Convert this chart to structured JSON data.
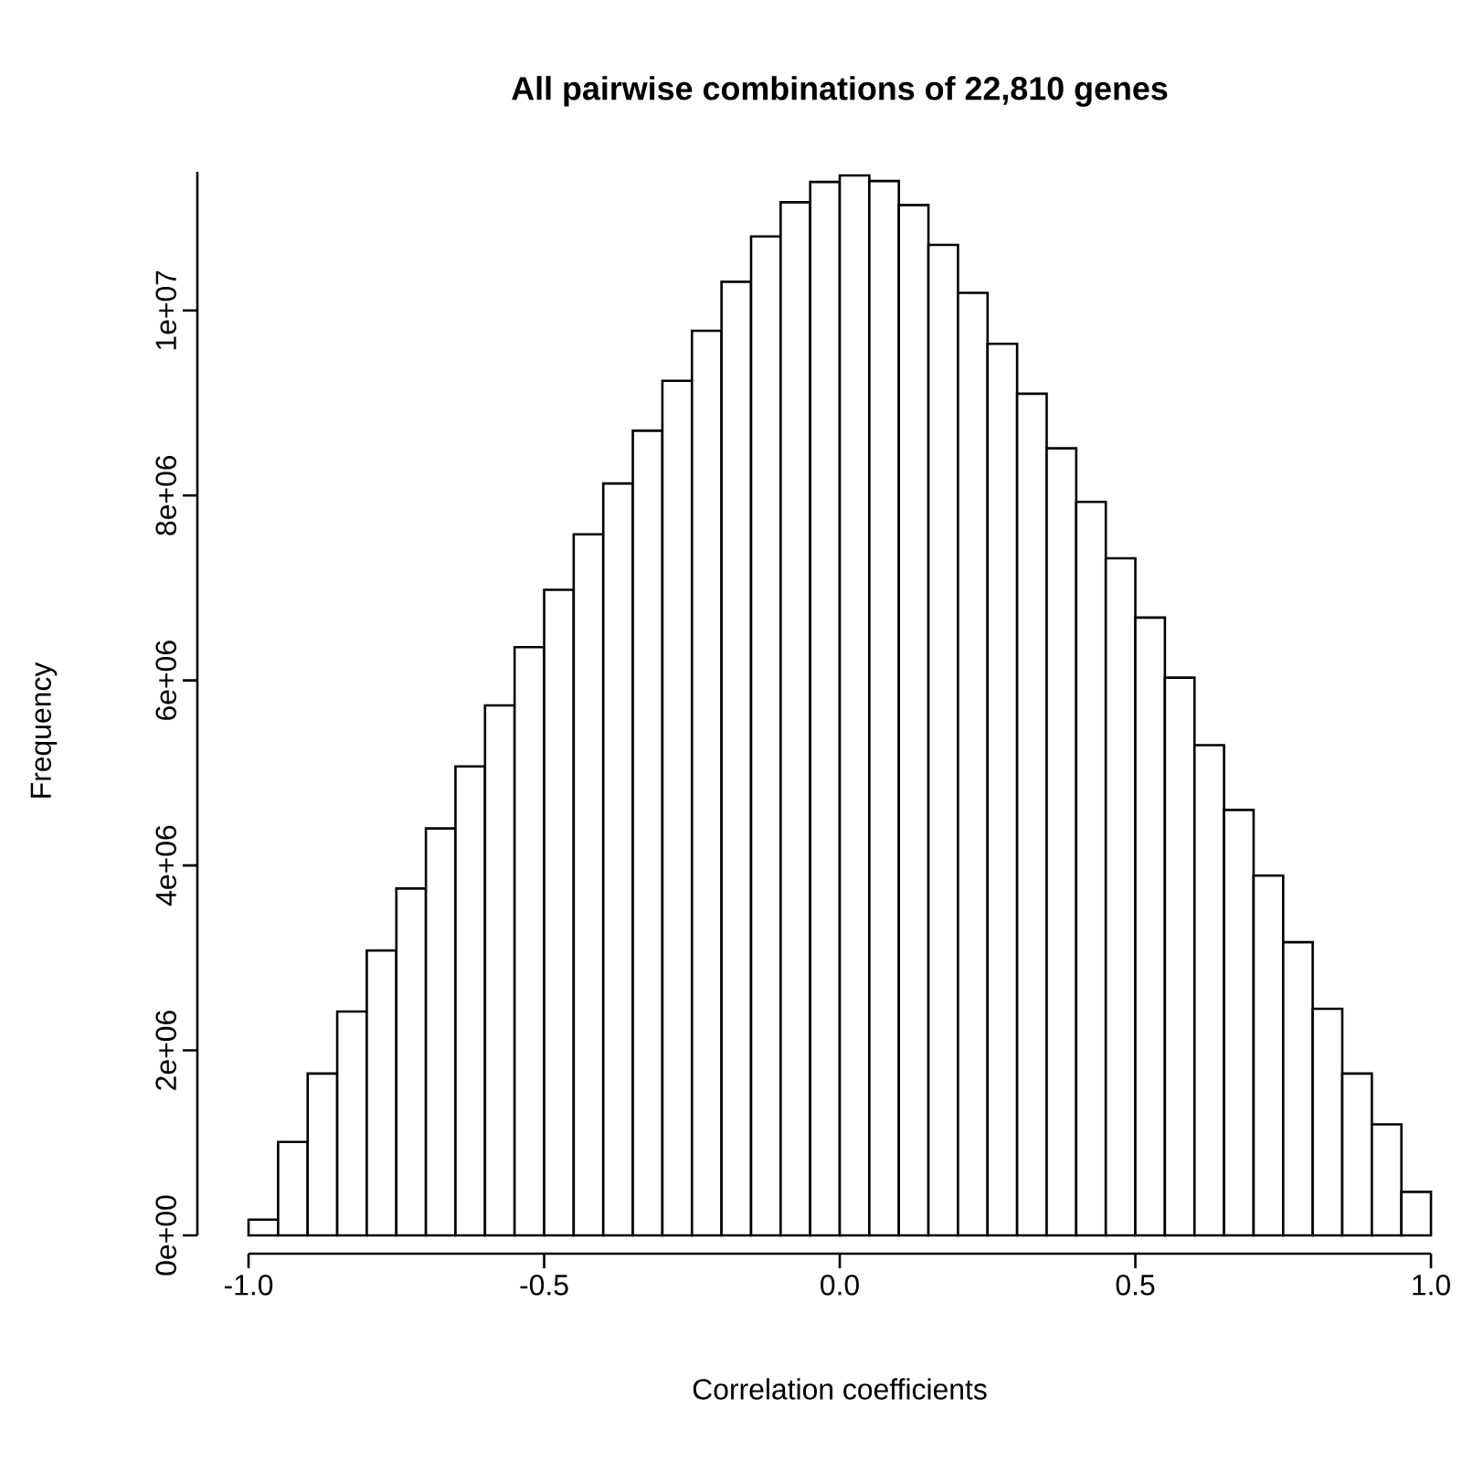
{
  "chart_data": {
    "type": "histogram",
    "title": "All pairwise combinations of 22,810 genes",
    "xlabel": "Correlation coefficients",
    "ylabel": "Frequency",
    "color": "#ffffff",
    "bins": [
      -1.0,
      -0.95,
      -0.9,
      -0.85,
      -0.8,
      -0.75,
      -0.7,
      -0.65,
      -0.6,
      -0.55,
      -0.5,
      -0.45,
      -0.4,
      -0.35,
      -0.3,
      -0.25,
      -0.2,
      -0.15,
      -0.1,
      -0.05,
      0.0,
      0.05,
      0.1,
      0.15,
      0.2,
      0.25,
      0.3,
      0.35,
      0.4,
      0.45,
      0.5,
      0.55,
      0.6,
      0.65,
      0.7,
      0.75,
      0.8,
      0.85,
      0.9,
      0.95,
      1.0
    ],
    "values": [
      170000,
      1010000,
      1750000,
      2420000,
      3080000,
      3750000,
      4400000,
      5070000,
      5730000,
      6360000,
      6980000,
      7580000,
      8130000,
      8700000,
      9240000,
      9780000,
      10310000,
      10800000,
      11170000,
      11390000,
      11460000,
      11400000,
      11140000,
      10710000,
      10190000,
      9640000,
      9100000,
      8510000,
      7930000,
      7320000,
      6680000,
      6030000,
      5300000,
      4600000,
      3890000,
      3170000,
      2450000,
      1750000,
      1200000,
      470000
    ],
    "xlim": [
      -1.0,
      1.0
    ],
    "ylim": [
      0,
      11500000
    ],
    "xticks": [
      {
        "value": -1.0,
        "label": "-1.0"
      },
      {
        "value": -0.5,
        "label": "-0.5"
      },
      {
        "value": 0.0,
        "label": "0.0"
      },
      {
        "value": 0.5,
        "label": "0.5"
      },
      {
        "value": 1.0,
        "label": "1.0"
      }
    ],
    "yticks": [
      {
        "value": 0,
        "label": "0e+00"
      },
      {
        "value": 2000000,
        "label": "2e+06"
      },
      {
        "value": 4000000,
        "label": "4e+06"
      },
      {
        "value": 6000000,
        "label": "6e+06"
      },
      {
        "value": 8000000,
        "label": "8e+06"
      },
      {
        "value": 10000000,
        "label": "1e+07"
      }
    ]
  }
}
